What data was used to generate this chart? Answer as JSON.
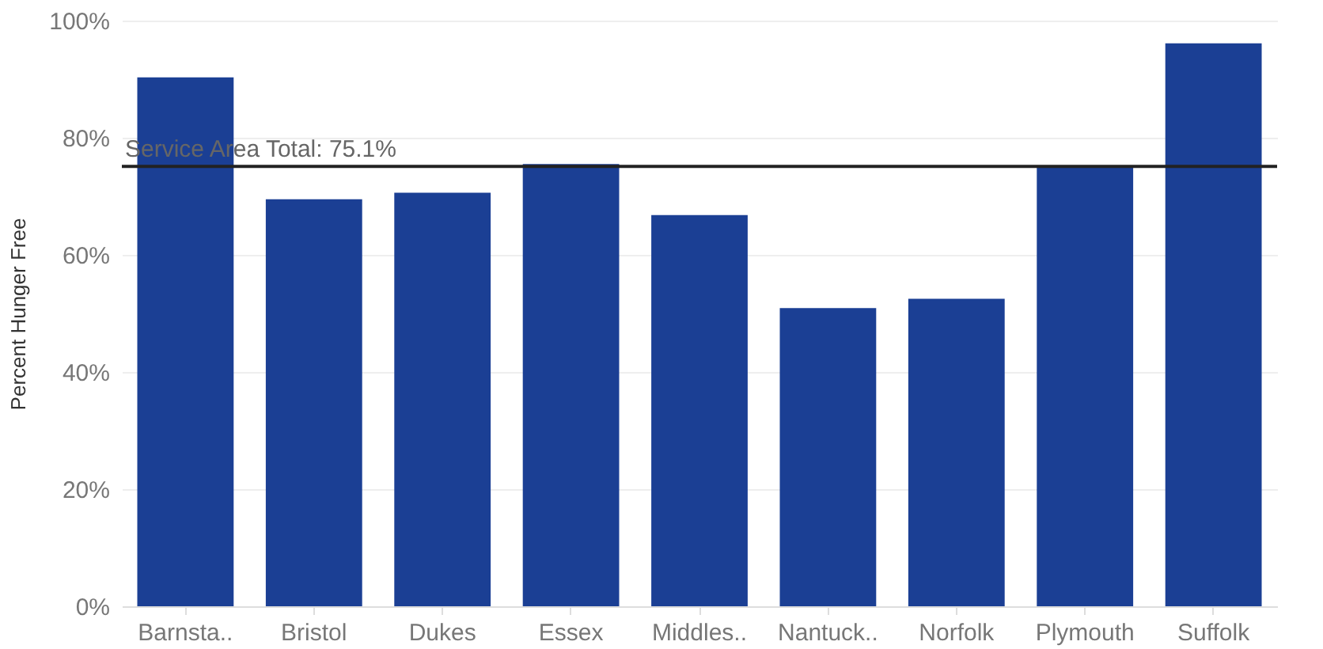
{
  "chart_data": {
    "type": "bar",
    "ylabel": "Percent Hunger Free",
    "categories": [
      "Barnsta..",
      "Bristol",
      "Dukes",
      "Essex",
      "Middles..",
      "Nantuck..",
      "Norfolk",
      "Plymouth",
      "Suffolk"
    ],
    "values": [
      90.3,
      69.5,
      70.6,
      75.5,
      66.8,
      50.9,
      52.5,
      75.2,
      96.1
    ],
    "color": "#1b3f94",
    "ylim": [
      0,
      100
    ],
    "yticks": [
      {
        "value": 0,
        "label": "0%"
      },
      {
        "value": 20,
        "label": "20%"
      },
      {
        "value": 40,
        "label": "40%"
      },
      {
        "value": 60,
        "label": "60%"
      },
      {
        "value": 80,
        "label": "80%"
      },
      {
        "value": 100,
        "label": "100%"
      }
    ],
    "grid": "y",
    "ref_lines": [
      {
        "axis": "y",
        "value": 75.1,
        "label": "Service Area Total: 75.1%",
        "color": "#222222"
      }
    ]
  }
}
